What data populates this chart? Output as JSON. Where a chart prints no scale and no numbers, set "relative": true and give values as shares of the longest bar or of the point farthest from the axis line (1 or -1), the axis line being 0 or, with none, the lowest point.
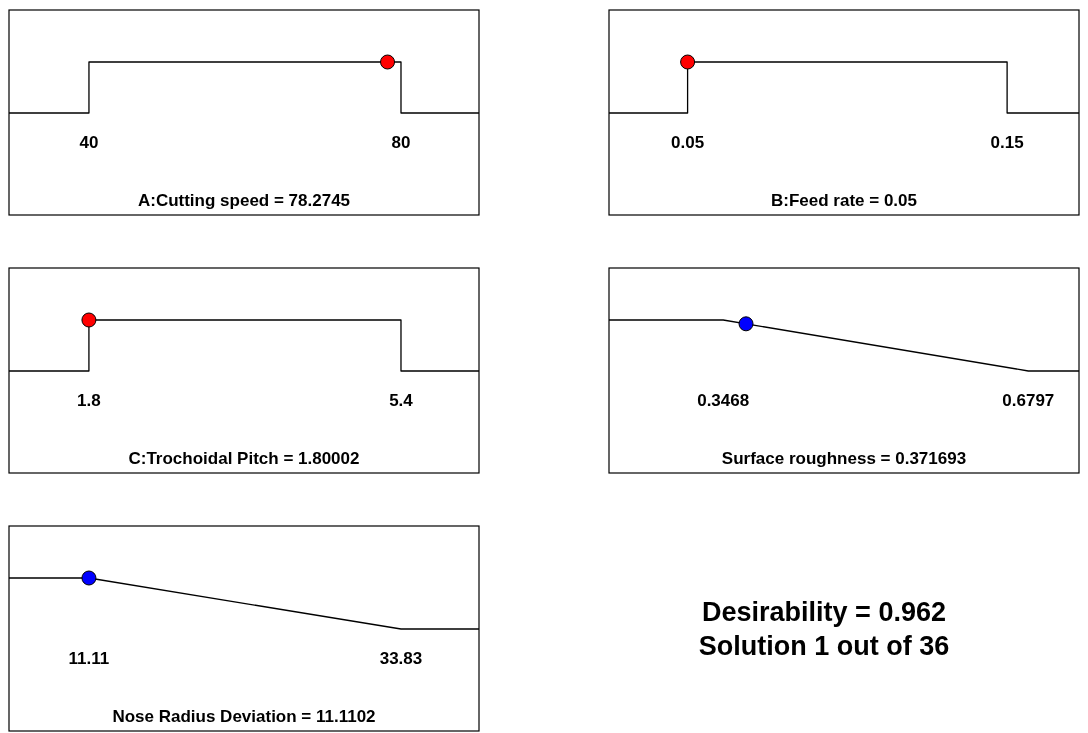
{
  "chart_data": [
    {
      "type": "line",
      "xlabel": "A:Cutting speed  = 78.2745",
      "relative": true,
      "xlim": [
        29.75,
        90
      ],
      "xticks": [
        40,
        80
      ],
      "grid": false,
      "marker": "circle",
      "series": [
        {
          "type": "line",
          "marker": "none",
          "color": "#000000",
          "x": [
            29.75,
            40,
            40,
            80,
            80,
            90
          ],
          "values": [
            0,
            0,
            1,
            1,
            0,
            0
          ]
        },
        {
          "type": "scatter",
          "color": "#ff0000",
          "x": [
            78.2745
          ],
          "values": [
            1
          ]
        }
      ]
    },
    {
      "type": "line",
      "xlabel": "B:Feed rate  = 0.05",
      "relative": true,
      "xlim": [
        0.0254,
        0.1725
      ],
      "xticks": [
        0.05,
        0.15
      ],
      "grid": false,
      "marker": "circle",
      "series": [
        {
          "type": "line",
          "marker": "none",
          "color": "#000000",
          "x": [
            0.0254,
            0.05,
            0.05,
            0.15,
            0.15,
            0.1725
          ],
          "values": [
            0,
            0,
            1,
            1,
            0,
            0
          ]
        },
        {
          "type": "scatter",
          "color": "#ff0000",
          "x": [
            0.05
          ],
          "values": [
            1
          ]
        }
      ]
    },
    {
      "type": "line",
      "xlabel": "C:Trochoidal Pitch  = 1.80002",
      "relative": true,
      "xlim": [
        0.878,
        6.3
      ],
      "xticks": [
        1.8,
        5.4
      ],
      "grid": false,
      "marker": "circle",
      "series": [
        {
          "type": "line",
          "marker": "none",
          "color": "#000000",
          "x": [
            0.878,
            1.8,
            1.8,
            5.4,
            5.4,
            6.3
          ],
          "values": [
            0,
            0,
            1,
            1,
            0,
            0
          ]
        },
        {
          "type": "scatter",
          "color": "#ff0000",
          "x": [
            1.80002
          ],
          "values": [
            1
          ]
        }
      ]
    },
    {
      "type": "line",
      "xlabel": "Surface roughness = 0.371693",
      "relative": true,
      "xlim": [
        0.2222,
        0.735
      ],
      "xticks": [
        0.3468,
        0.6797
      ],
      "grid": false,
      "marker": "circle",
      "series": [
        {
          "type": "line",
          "marker": "none",
          "color": "#000000",
          "x": [
            0.2222,
            0.3468,
            0.6797,
            0.735
          ],
          "values": [
            1,
            1,
            0,
            0
          ]
        },
        {
          "type": "scatter",
          "color": "#0000ff",
          "x": [
            0.371693
          ],
          "values": [
            0.925
          ]
        }
      ]
    },
    {
      "type": "line",
      "xlabel": "Nose Radius Deviation = 11.1102",
      "relative": true,
      "xlim": [
        5.29,
        39.51
      ],
      "xticks": [
        11.11,
        33.83
      ],
      "grid": false,
      "marker": "circle",
      "series": [
        {
          "type": "line",
          "marker": "none",
          "color": "#000000",
          "x": [
            5.29,
            11.11,
            33.83,
            39.51
          ],
          "values": [
            1,
            1,
            0,
            0
          ]
        },
        {
          "type": "scatter",
          "color": "#0000ff",
          "x": [
            11.1102
          ],
          "values": [
            1
          ]
        }
      ]
    },
    {
      "type": "other",
      "annotations": [
        "Desirability = 0.962",
        "Solution 1 out of 36"
      ]
    }
  ]
}
